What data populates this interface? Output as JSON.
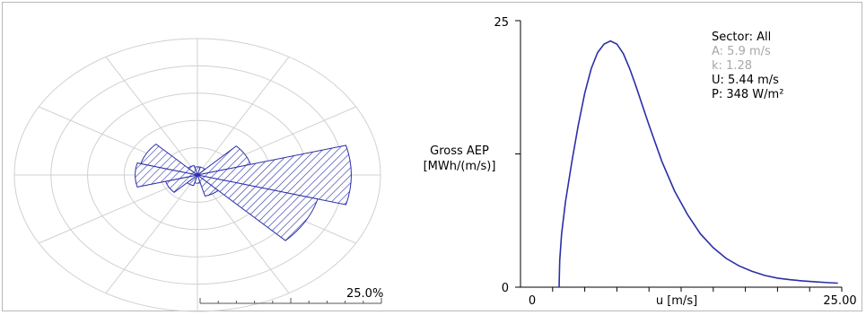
{
  "chart_data": [
    {
      "type": "wind_rose",
      "sectors": 12,
      "sector_width_deg": 30,
      "ring_count": 5,
      "scale_label": "25.0%",
      "fill_pattern": "hatched",
      "color": "#2b2fa8",
      "frequency_percent": [
        {
          "dir_deg": 0,
          "value": 1.5
        },
        {
          "dir_deg": 30,
          "value": 1.5
        },
        {
          "dir_deg": 60,
          "value": 7.5
        },
        {
          "dir_deg": 90,
          "value": 21.0
        },
        {
          "dir_deg": 120,
          "value": 17.0
        },
        {
          "dir_deg": 150,
          "value": 4.0
        },
        {
          "dir_deg": 180,
          "value": 1.5
        },
        {
          "dir_deg": 210,
          "value": 2.0
        },
        {
          "dir_deg": 240,
          "value": 4.5
        },
        {
          "dir_deg": 270,
          "value": 8.5
        },
        {
          "dir_deg": 300,
          "value": 8.0
        },
        {
          "dir_deg": 330,
          "value": 1.8
        }
      ]
    },
    {
      "type": "line",
      "ylabel": [
        "Gross AEP",
        "[MWh/(m/s)]"
      ],
      "xlabel": "u [m/s]",
      "xlim": [
        0,
        25
      ],
      "ylim": [
        0,
        25
      ],
      "x_tick_labels": [
        "0",
        "25.00"
      ],
      "y_tick_labels": [
        "0",
        "25"
      ],
      "line_color": "#2b2fa8",
      "points": [
        [
          3.0,
          0
        ],
        [
          3.05,
          2.5
        ],
        [
          3.2,
          5.0
        ],
        [
          3.5,
          8.0
        ],
        [
          4.0,
          11.8
        ],
        [
          4.5,
          15.2
        ],
        [
          5.0,
          18.2
        ],
        [
          5.5,
          20.5
        ],
        [
          6.0,
          22.0
        ],
        [
          6.5,
          22.8
        ],
        [
          7.0,
          23.1
        ],
        [
          7.5,
          22.8
        ],
        [
          8.0,
          21.9
        ],
        [
          8.5,
          20.5
        ],
        [
          9.0,
          18.8
        ],
        [
          9.5,
          17.0
        ],
        [
          10.0,
          15.2
        ],
        [
          11.0,
          11.8
        ],
        [
          12.0,
          9.0
        ],
        [
          13.0,
          6.8
        ],
        [
          14.0,
          5.0
        ],
        [
          15.0,
          3.7
        ],
        [
          16.0,
          2.7
        ],
        [
          17.0,
          2.0
        ],
        [
          18.0,
          1.5
        ],
        [
          19.0,
          1.1
        ],
        [
          20.0,
          0.85
        ],
        [
          21.0,
          0.7
        ],
        [
          22.0,
          0.58
        ],
        [
          23.0,
          0.5
        ],
        [
          24.0,
          0.42
        ],
        [
          24.7,
          0.38
        ]
      ],
      "info": {
        "sector": "Sector: All",
        "a": "A: 5.9 m/s",
        "k": "k: 1.28",
        "u": "U: 5.44 m/s",
        "p": "P: 348 W/m²"
      }
    }
  ]
}
